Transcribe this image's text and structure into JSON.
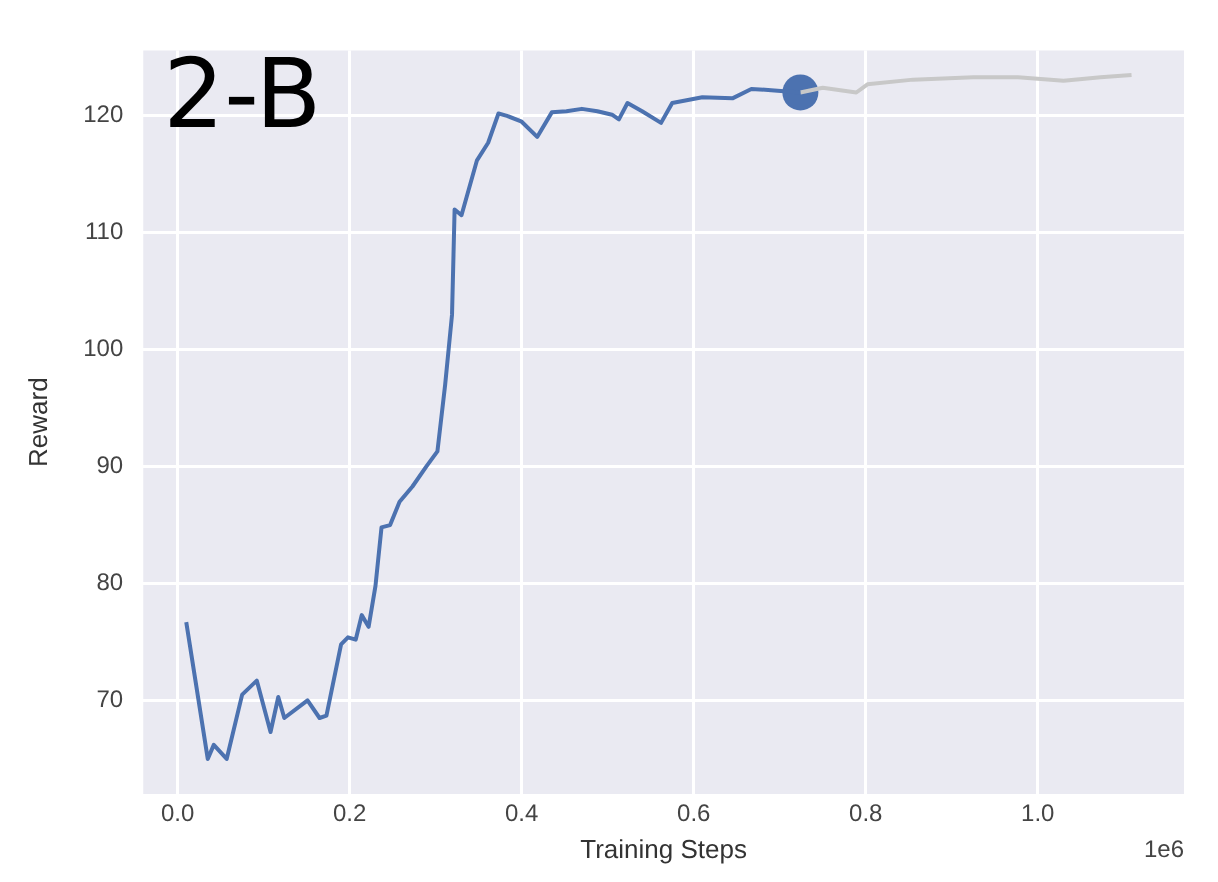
{
  "chart_data": {
    "type": "line",
    "xlabel": "Training Steps",
    "ylabel": "Reward",
    "annotations": [
      "2-B",
      "1e6"
    ],
    "xlim": [
      -0.04,
      1.17
    ],
    "ylim": [
      62,
      125.6
    ],
    "xticks": [
      {
        "value": 0,
        "label": "0.0"
      },
      {
        "value": 0.2,
        "label": "0.2"
      },
      {
        "value": 0.4,
        "label": "0.4"
      },
      {
        "value": 0.6,
        "label": "0.6"
      },
      {
        "value": 0.8,
        "label": "0.8"
      },
      {
        "value": 1,
        "label": "1.0"
      }
    ],
    "yticks": [
      70,
      80,
      90,
      100,
      110,
      120
    ],
    "grid": true,
    "legend": false,
    "series": [
      {
        "color": "#4c72b0",
        "marker": "none",
        "x": [
          0.01,
          0.035,
          0.042,
          0.057,
          0.075,
          0.092,
          0.108,
          0.117,
          0.124,
          0.151,
          0.165,
          0.173,
          0.19,
          0.198,
          0.207,
          0.214,
          0.222,
          0.23,
          0.237,
          0.247,
          0.258,
          0.273,
          0.289,
          0.302,
          0.311,
          0.319,
          0.322,
          0.33,
          0.348,
          0.361,
          0.373,
          0.383,
          0.4,
          0.418,
          0.435,
          0.452,
          0.47,
          0.488,
          0.505,
          0.513,
          0.523,
          0.54,
          0.562,
          0.575,
          0.61,
          0.645,
          0.667,
          0.69,
          0.724
        ],
        "values": [
          76.7,
          65,
          66.2,
          65,
          70.5,
          71.7,
          67.3,
          70.3,
          68.5,
          70,
          68.5,
          68.7,
          74.8,
          75.4,
          75.2,
          77.3,
          76.3,
          79.8,
          84.8,
          85,
          87,
          88.3,
          90,
          91.3,
          97,
          103,
          112,
          111.5,
          116.2,
          117.7,
          120.2,
          120,
          119.5,
          118.2,
          120.3,
          120.4,
          120.6,
          120.4,
          120.1,
          119.7,
          121.1,
          120.4,
          119.4,
          121.1,
          121.6,
          121.5,
          122.3,
          122.2,
          122
        ]
      },
      {
        "color": "#c8c8c8",
        "marker": "none",
        "x": [
          0.724,
          0.75,
          0.789,
          0.802,
          0.855,
          0.925,
          0.977,
          1.03,
          1.073,
          1.109
        ],
        "values": [
          122,
          122.4,
          122,
          122.7,
          123.1,
          123.3,
          123.3,
          123,
          123.3,
          123.5
        ]
      },
      {
        "type": "scatter",
        "color": "#4c72b0",
        "marker": "circle",
        "x": [
          0.724
        ],
        "values": [
          122
        ]
      }
    ]
  }
}
